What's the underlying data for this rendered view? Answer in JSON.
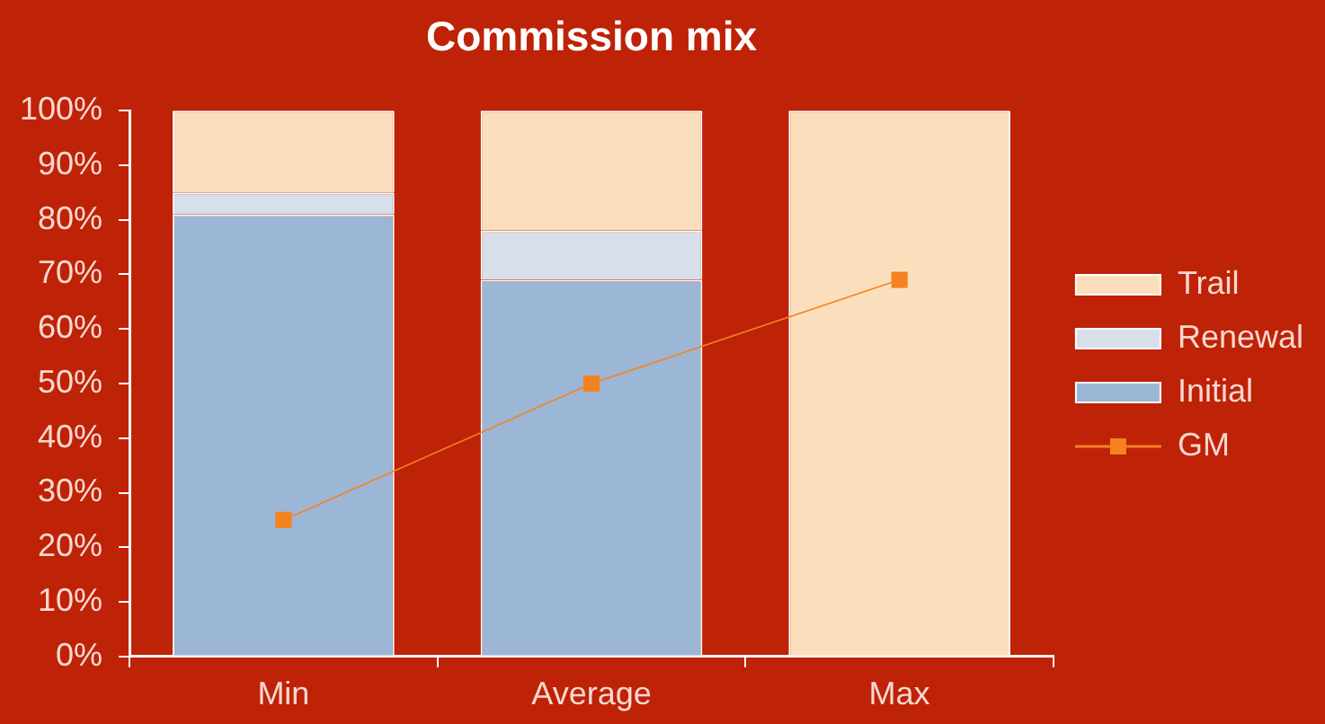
{
  "chart_data": {
    "type": "bar",
    "title": "Commission mix",
    "categories": [
      "Min",
      "Average",
      "Max"
    ],
    "stacked": true,
    "series": [
      {
        "name": "Initial",
        "color": "#9cb6d5",
        "values": [
          81,
          69,
          0
        ]
      },
      {
        "name": "Renewal",
        "color": "#d6dfea",
        "values": [
          4,
          9,
          0
        ]
      },
      {
        "name": "Trail",
        "color": "#fbdfbd",
        "values": [
          15,
          22,
          100
        ]
      },
      {
        "name": "GM",
        "type": "line",
        "color": "#f58220",
        "values": [
          25,
          50,
          69
        ]
      }
    ],
    "ylim": [
      0,
      100
    ],
    "yticks": [
      {
        "value": 0,
        "label": "0%"
      },
      {
        "value": 10,
        "label": "10%"
      },
      {
        "value": 20,
        "label": "20%"
      },
      {
        "value": 30,
        "label": "30%"
      },
      {
        "value": 40,
        "label": "40%"
      },
      {
        "value": 50,
        "label": "50%"
      },
      {
        "value": 60,
        "label": "60%"
      },
      {
        "value": 70,
        "label": "70%"
      },
      {
        "value": 80,
        "label": "80%"
      },
      {
        "value": 90,
        "label": "90%"
      },
      {
        "value": 100,
        "label": "100%"
      }
    ],
    "legend": "right",
    "marker": "square"
  }
}
